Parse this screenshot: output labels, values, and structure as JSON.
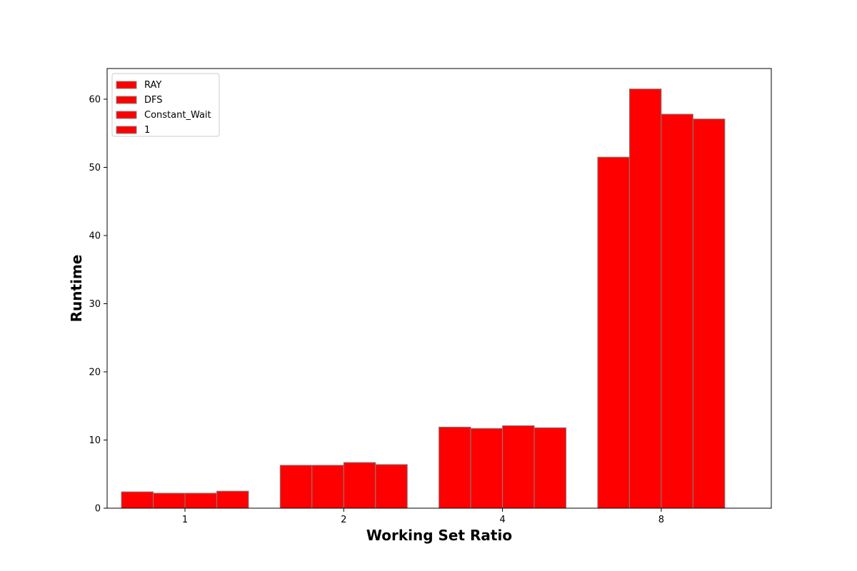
{
  "chart_data": {
    "type": "bar",
    "title": "",
    "xlabel": "Working Set Ratio",
    "ylabel": "Runtime",
    "categories": [
      "1",
      "2",
      "4",
      "8"
    ],
    "series": [
      {
        "name": "RAY",
        "values": [
          2.4,
          6.3,
          11.9,
          51.5
        ]
      },
      {
        "name": "DFS",
        "values": [
          2.2,
          6.3,
          11.7,
          61.5
        ]
      },
      {
        "name": "Constant_Wait",
        "values": [
          2.2,
          6.7,
          12.1,
          57.8
        ]
      },
      {
        "name": "1",
        "values": [
          2.5,
          6.4,
          11.8,
          57.1
        ]
      }
    ],
    "ylim": [
      0,
      64.5
    ],
    "yticks": [
      0,
      10,
      20,
      30,
      40,
      50,
      60
    ],
    "grid": false,
    "legend": "top-left",
    "bar_color": "#ff0000",
    "bar_edge_color": "#808080"
  }
}
